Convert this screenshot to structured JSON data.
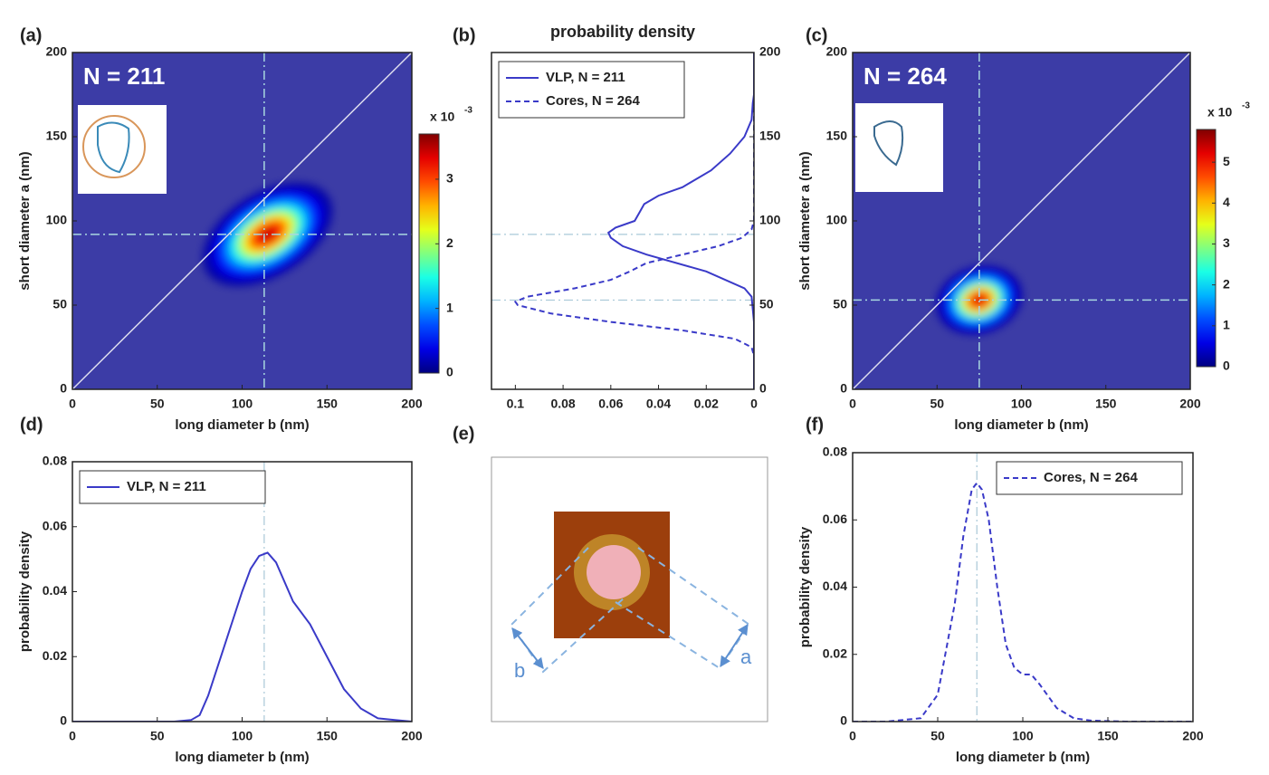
{
  "chart_data": [
    {
      "type": "heatmap",
      "panel_label": "(a)",
      "annotation": "N = 211",
      "xlabel": "long diameter b (nm)",
      "ylabel": "short diameter a (nm)",
      "xlim": [
        0,
        200
      ],
      "ylim": [
        0,
        200
      ],
      "xticks": [
        0,
        50,
        100,
        150,
        200
      ],
      "yticks": [
        0,
        50,
        100,
        150,
        200
      ],
      "density": {
        "mean_x": 115,
        "mean_y": 92,
        "sd_x": 15,
        "sd_y": 12,
        "correlation": 0.45,
        "peak": 3.6
      },
      "mean_lines": {
        "x": 113,
        "y": 92
      },
      "diagonal": true,
      "colormap": "jet",
      "colorbar": {
        "clim": [
          0,
          3.7
        ],
        "ticks": [
          0,
          1,
          2,
          3
        ],
        "label": "x 10",
        "exponent": "-3"
      }
    },
    {
      "type": "line",
      "orientation": "horizontal",
      "panel_label": "(b)",
      "title": "probability density",
      "xlim": [
        0.11,
        0
      ],
      "ylim": [
        0,
        200
      ],
      "xticks": [
        0.1,
        0.08,
        0.06,
        0.04,
        0.02,
        0
      ],
      "yticks": [
        0,
        50,
        100,
        150,
        200
      ],
      "yaxis_side": "right",
      "legend": "upper left",
      "hlines": [
        92,
        53
      ],
      "series": [
        {
          "name": "VLP, N = 211",
          "color": "#3a3ac8",
          "linestyle": "solid",
          "x": [
            0,
            40,
            55,
            60,
            70,
            80,
            85,
            90,
            93,
            96,
            100,
            105,
            110,
            115,
            120,
            130,
            140,
            150,
            160,
            170,
            175,
            180,
            200
          ],
          "values": [
            0,
            0,
            0.001,
            0.004,
            0.02,
            0.045,
            0.055,
            0.06,
            0.061,
            0.058,
            0.05,
            0.048,
            0.046,
            0.04,
            0.03,
            0.018,
            0.01,
            0.004,
            0.001,
            0.0005,
            0,
            0,
            0
          ]
        },
        {
          "name": "Cores, N = 264",
          "color": "#3a3ac8",
          "linestyle": "dashed",
          "x": [
            0,
            20,
            25,
            30,
            35,
            40,
            45,
            50,
            52,
            55,
            60,
            65,
            70,
            75,
            80,
            85,
            90,
            95,
            100,
            200
          ],
          "values": [
            0,
            0,
            0.001,
            0.008,
            0.03,
            0.06,
            0.085,
            0.099,
            0.1,
            0.095,
            0.075,
            0.06,
            0.052,
            0.045,
            0.03,
            0.015,
            0.005,
            0.001,
            0,
            0
          ]
        }
      ]
    },
    {
      "type": "heatmap",
      "panel_label": "(c)",
      "annotation": "N = 264",
      "xlabel": "long diameter b (nm)",
      "ylabel": "short diameter a (nm)",
      "xlim": [
        0,
        200
      ],
      "ylim": [
        0,
        200
      ],
      "xticks": [
        0,
        50,
        100,
        150,
        200
      ],
      "yticks": [
        0,
        50,
        100,
        150,
        200
      ],
      "density": {
        "mean_x": 75,
        "mean_y": 53,
        "sd_x": 10,
        "sd_y": 8,
        "correlation": 0.15,
        "peak": 5.6
      },
      "mean_lines": {
        "x": 75,
        "y": 53
      },
      "diagonal": true,
      "colormap": "jet",
      "colorbar": {
        "clim": [
          0,
          5.8
        ],
        "ticks": [
          0,
          1,
          2,
          3,
          4,
          5
        ],
        "label": "x 10",
        "exponent": "-3"
      }
    },
    {
      "type": "line",
      "panel_label": "(d)",
      "xlabel": "long diameter b (nm)",
      "ylabel": "probability density",
      "xlim": [
        0,
        200
      ],
      "ylim": [
        0,
        0.08
      ],
      "xticks": [
        0,
        50,
        100,
        150,
        200
      ],
      "yticks": [
        0,
        0.02,
        0.04,
        0.06,
        0.08
      ],
      "legend": "upper left",
      "vlines": [
        113
      ],
      "series": [
        {
          "name": "VLP, N = 211",
          "color": "#3a3ac8",
          "linestyle": "solid",
          "x": [
            0,
            20,
            40,
            60,
            70,
            75,
            80,
            90,
            100,
            105,
            110,
            115,
            120,
            130,
            140,
            150,
            160,
            170,
            180,
            190,
            200
          ],
          "values": [
            0,
            0,
            0,
            0,
            0.0005,
            0.002,
            0.008,
            0.024,
            0.04,
            0.047,
            0.051,
            0.052,
            0.049,
            0.037,
            0.03,
            0.02,
            0.01,
            0.004,
            0.001,
            0.0005,
            0
          ]
        }
      ]
    },
    {
      "type": "line",
      "panel_label": "(f)",
      "xlabel": "long diameter b (nm)",
      "ylabel": "probability density",
      "xlim": [
        0,
        200
      ],
      "ylim": [
        0,
        0.08
      ],
      "xticks": [
        0,
        50,
        100,
        150,
        200
      ],
      "yticks": [
        0,
        0.02,
        0.04,
        0.06,
        0.08
      ],
      "legend": "upper right",
      "vlines": [
        73
      ],
      "series": [
        {
          "name": "Cores, N = 264",
          "color": "#3a3ac8",
          "linestyle": "dashed",
          "x": [
            0,
            20,
            40,
            50,
            60,
            65,
            70,
            73,
            76,
            80,
            85,
            90,
            95,
            100,
            105,
            110,
            120,
            130,
            140,
            160,
            200
          ],
          "values": [
            0,
            0,
            0.001,
            0.008,
            0.035,
            0.055,
            0.069,
            0.071,
            0.069,
            0.06,
            0.04,
            0.023,
            0.016,
            0.014,
            0.014,
            0.011,
            0.004,
            0.001,
            0.0003,
            0,
            0
          ]
        }
      ]
    }
  ],
  "panel_e": {
    "panel_label": "(e)",
    "labels": [
      "b",
      "a"
    ]
  }
}
